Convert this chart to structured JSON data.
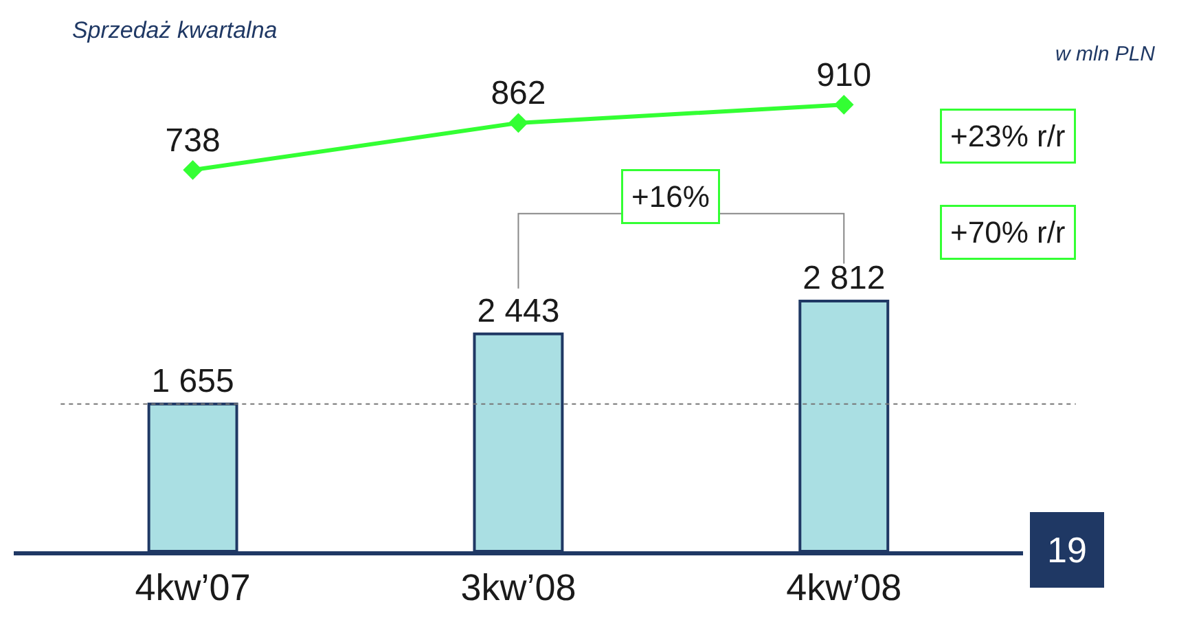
{
  "chart_data": [
    {
      "type": "line",
      "title": "Sprzedaż kwartalna",
      "categories": [
        "4kw’07",
        "3kw’08",
        "4kw’08"
      ],
      "series": [
        {
          "color": "#33ff33",
          "marker": "diamond",
          "values": [
            738,
            862,
            910
          ],
          "value_labels": [
            "738",
            "862",
            "910"
          ]
        }
      ],
      "tick_labels": false,
      "legend": false,
      "annotations": [
        "w mln PLN",
        "+23% r/r"
      ]
    },
    {
      "type": "bar",
      "categories": [
        "4kw’07",
        "3kw’08",
        "4kw’08"
      ],
      "series": [
        {
          "color": "#aadfe3",
          "values": [
            1655,
            2443,
            2812
          ],
          "value_labels": [
            "1 655",
            "2 443",
            "2 812"
          ]
        }
      ],
      "tick_labels": "x",
      "legend": false,
      "ref_lines": [
        {
          "axis": "y",
          "value": 1655,
          "color": "#777777",
          "line_style": "dotted"
        }
      ],
      "annotations": [
        "+16%",
        "+70% r/r",
        "19"
      ]
    }
  ]
}
